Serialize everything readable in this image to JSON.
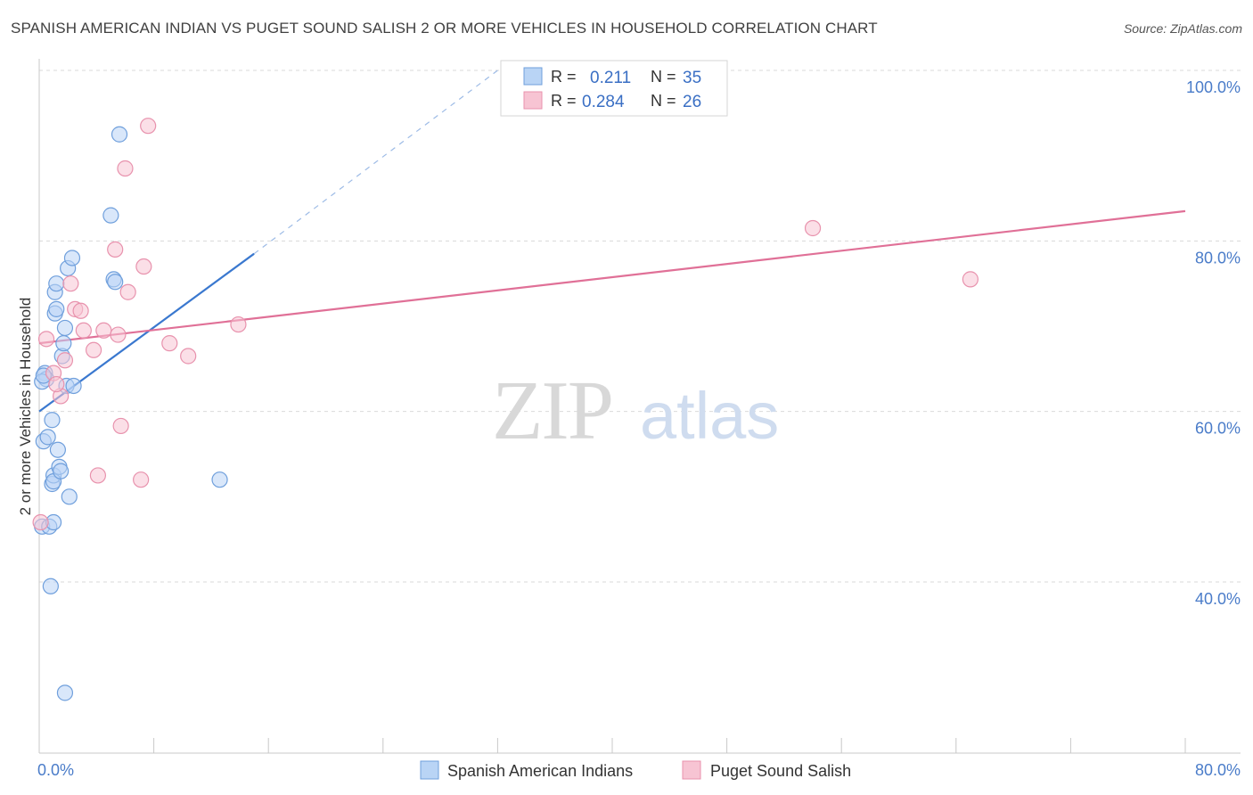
{
  "title": "SPANISH AMERICAN INDIAN VS PUGET SOUND SALISH 2 OR MORE VEHICLES IN HOUSEHOLD CORRELATION CHART",
  "source": "Source: ZipAtlas.com",
  "watermark": {
    "zip": "ZIP",
    "atlas": "atlas"
  },
  "colors": {
    "blue_fill": "#b9d4f5",
    "blue_stroke": "#6f9fdc",
    "blue_line": "#3a78cf",
    "pink_fill": "#f7c4d3",
    "pink_stroke": "#e892ad",
    "pink_line": "#e07097",
    "tick_text": "#4a7cc9",
    "grid": "#d9d9d9"
  },
  "legend": {
    "r_label": "R =",
    "n_label": "N =",
    "rows": [
      {
        "r": "0.211",
        "n": "35"
      },
      {
        "r": "0.284",
        "n": "26"
      }
    ]
  },
  "chart_data": {
    "type": "scatter",
    "title": "SPANISH AMERICAN INDIAN VS PUGET SOUND SALISH 2 OR MORE VEHICLES IN HOUSEHOLD CORRELATION CHART",
    "xlabel": "",
    "ylabel": "2 or more Vehicles in Household",
    "xlim": [
      0,
      80
    ],
    "ylim": [
      20,
      102
    ],
    "x_tick_labels": [
      "0.0%",
      "80.0%"
    ],
    "y_ticks": [
      40,
      60,
      80,
      100
    ],
    "y_tick_labels": [
      "40.0%",
      "60.0%",
      "80.0%",
      "100.0%"
    ],
    "series": [
      {
        "name": "Spanish American Indians",
        "points": [
          [
            0.2,
            46.5
          ],
          [
            0.3,
            56.5
          ],
          [
            0.4,
            64.5
          ],
          [
            0.5,
            63.8
          ],
          [
            0.6,
            57.0
          ],
          [
            0.7,
            46.5
          ],
          [
            0.8,
            39.5
          ],
          [
            0.9,
            59.0
          ],
          [
            0.9,
            51.5
          ],
          [
            1.0,
            52.5
          ],
          [
            1.0,
            51.8
          ],
          [
            1.1,
            74.0
          ],
          [
            1.1,
            71.5
          ],
          [
            1.2,
            75.0
          ],
          [
            1.2,
            72.0
          ],
          [
            1.3,
            55.5
          ],
          [
            1.4,
            53.5
          ],
          [
            1.5,
            53.0
          ],
          [
            1.6,
            66.5
          ],
          [
            1.7,
            68.0
          ],
          [
            1.8,
            69.8
          ],
          [
            1.8,
            27.0
          ],
          [
            1.9,
            63.0
          ],
          [
            2.0,
            76.8
          ],
          [
            2.1,
            50.0
          ],
          [
            2.3,
            78.0
          ],
          [
            2.4,
            63.0
          ],
          [
            5.2,
            75.5
          ],
          [
            5.3,
            75.2
          ],
          [
            5.0,
            83.0
          ],
          [
            5.6,
            92.5
          ],
          [
            12.6,
            52.0
          ],
          [
            0.2,
            63.5
          ],
          [
            0.3,
            64.2
          ],
          [
            1.0,
            47.0
          ]
        ],
        "trend": {
          "x0": 0.0,
          "y0": 60.0,
          "x1": 15.0,
          "y1": 78.5,
          "dashed_to_x": 32.0,
          "dashed_to_y": 100.0
        }
      },
      {
        "name": "Puget Sound Salish",
        "points": [
          [
            0.1,
            47.0
          ],
          [
            0.5,
            68.5
          ],
          [
            1.0,
            64.5
          ],
          [
            1.5,
            61.8
          ],
          [
            1.8,
            66.0
          ],
          [
            2.2,
            75.0
          ],
          [
            2.5,
            72.0
          ],
          [
            2.9,
            71.8
          ],
          [
            3.1,
            69.5
          ],
          [
            3.8,
            67.2
          ],
          [
            4.1,
            52.5
          ],
          [
            4.5,
            69.5
          ],
          [
            5.3,
            79.0
          ],
          [
            5.5,
            69.0
          ],
          [
            5.7,
            58.3
          ],
          [
            6.0,
            88.5
          ],
          [
            6.2,
            74.0
          ],
          [
            7.1,
            52.0
          ],
          [
            7.3,
            77.0
          ],
          [
            7.6,
            93.5
          ],
          [
            9.1,
            68.0
          ],
          [
            10.4,
            66.5
          ],
          [
            13.9,
            70.2
          ],
          [
            54.0,
            81.5
          ],
          [
            65.0,
            75.5
          ],
          [
            1.2,
            63.2
          ]
        ],
        "trend": {
          "x0": 0.0,
          "y0": 68.0,
          "x1": 80.0,
          "y1": 83.5
        }
      }
    ]
  }
}
